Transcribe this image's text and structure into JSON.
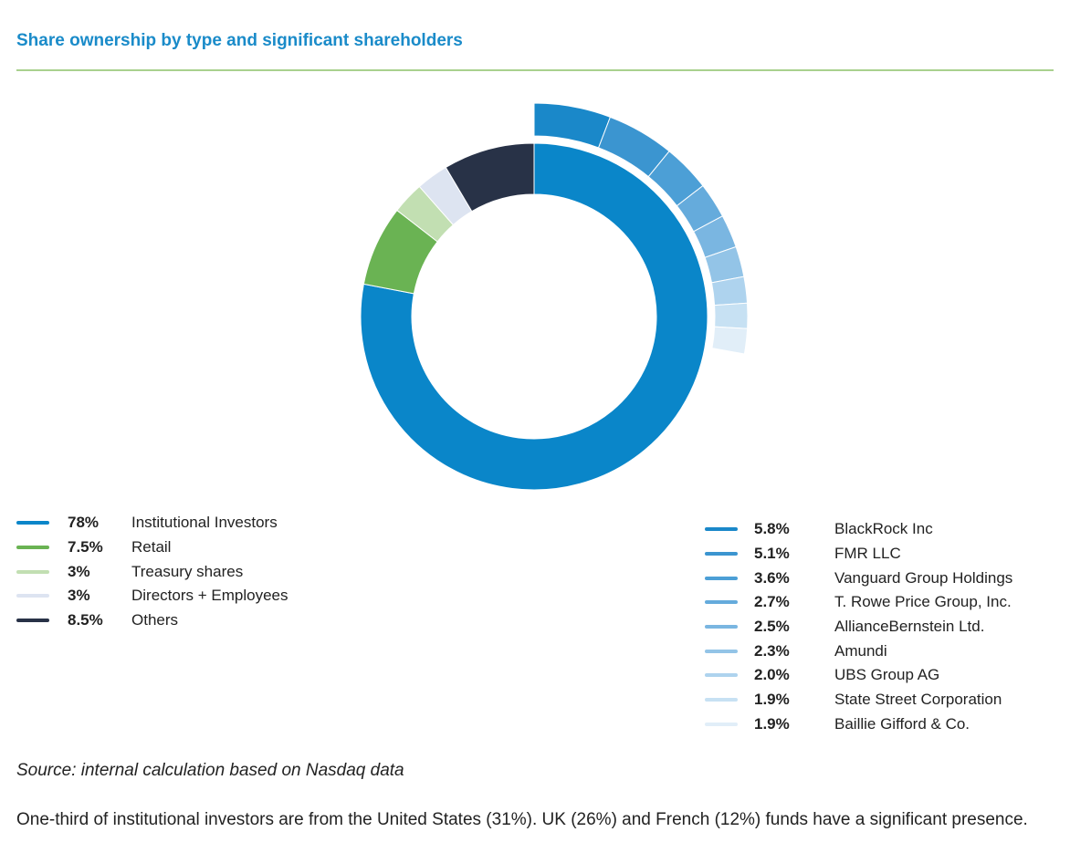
{
  "title": "Share ownership by type and significant shareholders",
  "chart_data": {
    "type": "pie",
    "title": "Share ownership by type and significant shareholders",
    "ownership_by_type": {
      "series": [
        {
          "name": "Institutional Investors",
          "value": 78,
          "label": "78%",
          "color": "#0a86c9"
        },
        {
          "name": "Retail",
          "value": 7.5,
          "label": "7.5%",
          "color": "#6ab353"
        },
        {
          "name": "Treasury shares",
          "value": 3,
          "label": "3%",
          "color": "#c2dfb2"
        },
        {
          "name": "Directors + Employees",
          "value": 3,
          "label": "3%",
          "color": "#dde4f1"
        },
        {
          "name": "Others",
          "value": 8.5,
          "label": "8.5%",
          "color": "#283247"
        }
      ]
    },
    "significant_shareholders": {
      "series": [
        {
          "name": "BlackRock Inc",
          "value": 5.8,
          "label": "5.8%",
          "color": "#1a88c9"
        },
        {
          "name": "FMR LLC",
          "value": 5.1,
          "label": "5.1%",
          "color": "#3b95d0"
        },
        {
          "name": "Vanguard Group Holdings",
          "value": 3.6,
          "label": "3.6%",
          "color": "#4c9fd6"
        },
        {
          "name": "T. Rowe Price Group, Inc.",
          "value": 2.7,
          "label": "2.7%",
          "color": "#65abdc"
        },
        {
          "name": "AllianceBernstein Ltd.",
          "value": 2.5,
          "label": "2.5%",
          "color": "#7ab6e1"
        },
        {
          "name": "Amundi",
          "value": 2.3,
          "label": "2.3%",
          "color": "#93c4e7"
        },
        {
          "name": "UBS Group AG",
          "value": 2.0,
          "label": "2.0%",
          "color": "#aed3ee"
        },
        {
          "name": "State Street Corporation",
          "value": 1.9,
          "label": "1.9%",
          "color": "#c7e1f3"
        },
        {
          "name": "Baillie Gifford & Co.",
          "value": 1.9,
          "label": "1.9%",
          "color": "#e1eef8"
        }
      ]
    }
  },
  "source": "Source: internal calculation based on Nasdaq data",
  "note": "One-third of institutional investors are from the United States (31%). UK (26%) and French (12%) funds have a significant presence."
}
